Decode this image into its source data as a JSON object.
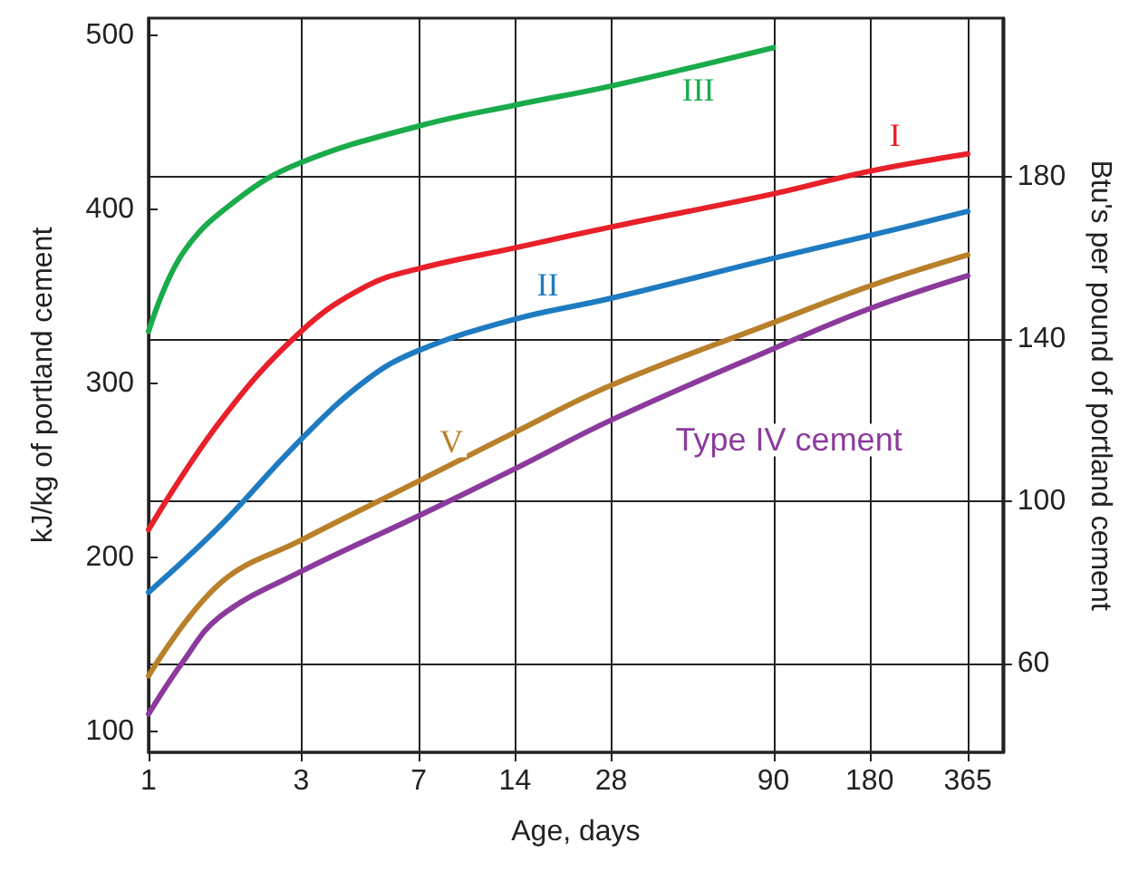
{
  "chart_data": {
    "type": "line",
    "xlabel": "Age, days",
    "ylabel": "kJ/kg of portland cement",
    "y2label": "Btu's per pound of portland cement",
    "log": "x",
    "xlim": [
      1,
      470
    ],
    "xticks": [
      1,
      3,
      7,
      14,
      28,
      90,
      180,
      365
    ],
    "ylim": [
      88,
      510
    ],
    "yticks": [
      100,
      200,
      300,
      400,
      500
    ],
    "y2lim": [
      38,
      219
    ],
    "y2ticks": [
      60,
      100,
      140,
      180
    ],
    "grid": true,
    "legend": false,
    "marker": "none",
    "line_style": "solid",
    "series": [
      {
        "name": "III",
        "color": "#1aab4b",
        "x": [
          1,
          1.28,
          1.9,
          3,
          7,
          14,
          28,
          90
        ],
        "values": [
          330,
          375,
          406,
          427,
          448,
          460,
          471,
          493
        ]
      },
      {
        "name": "I",
        "color": "#e8202a",
        "x": [
          1,
          1.67,
          3,
          4.8,
          7,
          14,
          28,
          90,
          180,
          365
        ],
        "values": [
          216,
          278,
          330,
          356,
          366,
          378,
          390,
          409,
          422,
          432
        ]
      },
      {
        "name": "II",
        "color": "#1f7bc1",
        "x": [
          1,
          1.67,
          3,
          4.8,
          7,
          14,
          28,
          90,
          180,
          365
        ],
        "values": [
          180,
          218,
          268,
          302,
          319,
          337,
          349,
          372,
          385,
          399
        ]
      },
      {
        "name": "V",
        "color": "#b8802a",
        "x": [
          1,
          1.67,
          3,
          7,
          14,
          28,
          90,
          180,
          365
        ],
        "values": [
          132,
          185,
          210,
          244,
          272,
          299,
          335,
          356,
          374
        ]
      },
      {
        "name": "Type IV cement",
        "color": "#8b3a9c",
        "x": [
          1,
          1.28,
          1.67,
          3,
          7,
          14,
          28,
          90,
          180,
          365
        ],
        "values": [
          110,
          140,
          166,
          192,
          224,
          251,
          279,
          320,
          343,
          362
        ]
      }
    ]
  }
}
